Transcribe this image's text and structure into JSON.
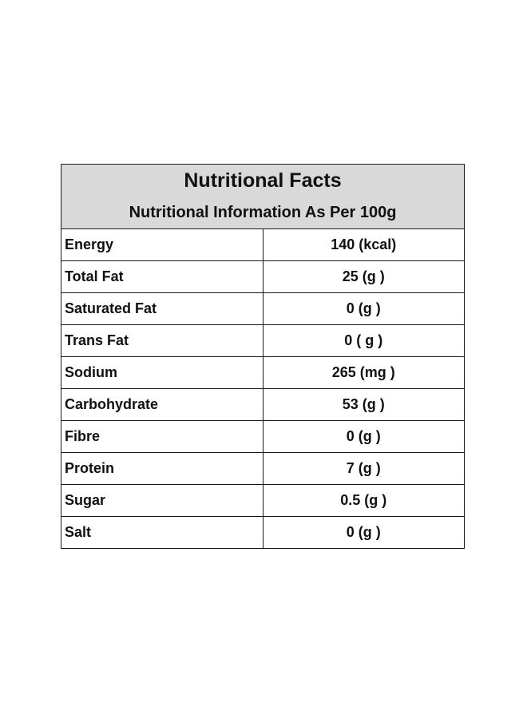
{
  "table": {
    "title": "Nutritional Facts",
    "subtitle": "Nutritional Information As Per 100g",
    "rows": [
      {
        "label": "Energy",
        "value": "140 (kcal)"
      },
      {
        "label": "Total Fat",
        "value": "25 (g )"
      },
      {
        "label": "Saturated Fat",
        "value": "0 (g )"
      },
      {
        "label": "Trans Fat",
        "value": "0 ( g )"
      },
      {
        "label": "Sodium",
        "value": "265 (mg )"
      },
      {
        "label": "Carbohydrate",
        "value": "53 (g )"
      },
      {
        "label": "Fibre",
        "value": "0 (g )"
      },
      {
        "label": "Protein",
        "value": "7 (g )"
      },
      {
        "label": "Sugar",
        "value": "0.5 (g )"
      },
      {
        "label": "Salt",
        "value": "0 (g )"
      }
    ]
  },
  "colors": {
    "header_background": "#d9d9d9",
    "border": "#1a1a1a"
  }
}
